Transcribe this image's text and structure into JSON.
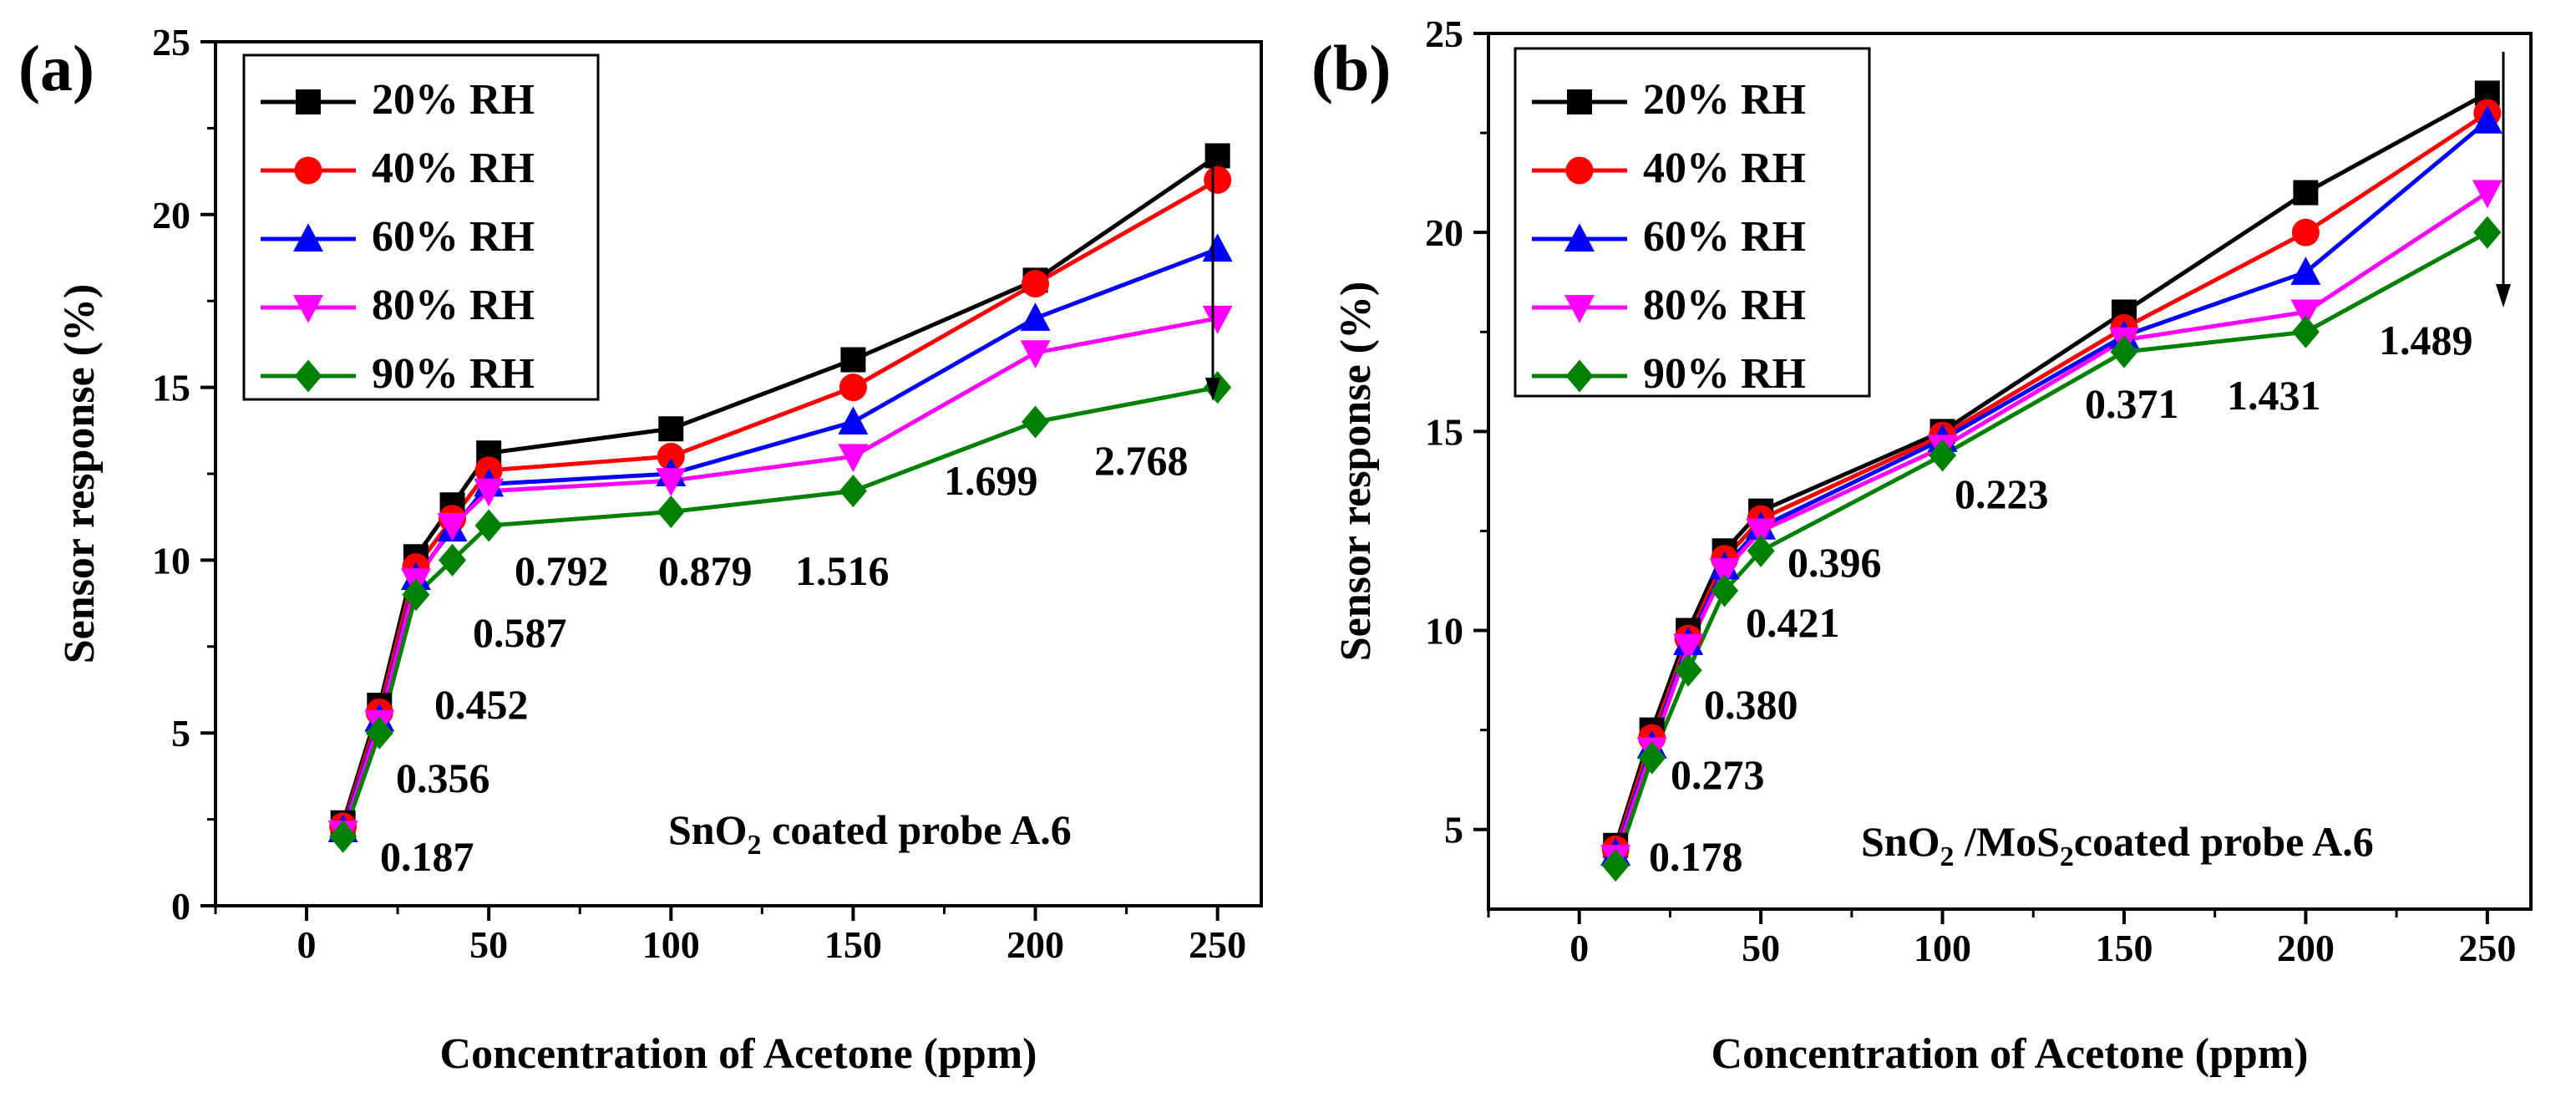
{
  "colors": {
    "rh20": "#000000",
    "rh40": "#ff0000",
    "rh60": "#0000ff",
    "rh80": "#ff00ff",
    "rh90": "#008000"
  },
  "chart_data": [
    {
      "type": "line",
      "panel_label": "(a)",
      "title": "",
      "xlabel": "Concentration of Acetone (ppm)",
      "ylabel": "Sensor response (%)",
      "xlim": [
        -25,
        262
      ],
      "ylim": [
        0,
        25
      ],
      "xticks": [
        0,
        50,
        100,
        150,
        200,
        250
      ],
      "yticks": [
        0,
        5,
        10,
        15,
        20,
        25
      ],
      "x": [
        10,
        20,
        30,
        40,
        50,
        100,
        150,
        200,
        250
      ],
      "series": [
        {
          "name": "20% RH",
          "marker": "square",
          "color": "#000000",
          "values": [
            2.4,
            5.8,
            10.1,
            11.6,
            13.1,
            13.8,
            15.8,
            18.1,
            21.7
          ]
        },
        {
          "name": "40% RH",
          "marker": "circle",
          "color": "#ff0000",
          "values": [
            2.3,
            5.6,
            9.8,
            11.2,
            12.6,
            13.0,
            15.0,
            18.0,
            21.0
          ]
        },
        {
          "name": "60% RH",
          "marker": "triangle-up",
          "color": "#0000ff",
          "values": [
            2.2,
            5.4,
            9.5,
            10.9,
            12.2,
            12.5,
            14.0,
            17.0,
            19.0
          ]
        },
        {
          "name": "80% RH",
          "marker": "triangle-down",
          "color": "#ff00ff",
          "values": [
            2.1,
            5.3,
            9.4,
            11.0,
            12.0,
            12.3,
            13.0,
            16.0,
            17.0
          ]
        },
        {
          "name": "90% RH",
          "marker": "diamond",
          "color": "#008000",
          "values": [
            2.0,
            5.0,
            9.0,
            10.0,
            11.0,
            11.4,
            12.0,
            14.0,
            15.0
          ]
        }
      ],
      "annotations": [
        {
          "text": "0.187",
          "x": 10
        },
        {
          "text": "0.356",
          "x": 20
        },
        {
          "text": "0.452",
          "x": 30
        },
        {
          "text": "0.587",
          "x": 40
        },
        {
          "text": "0.792",
          "x": 50
        },
        {
          "text": "0.879",
          "x": 100
        },
        {
          "text": "1.516",
          "x": 150
        },
        {
          "text": "1.699",
          "x": 200
        },
        {
          "text": "2.768",
          "x": 250
        }
      ],
      "caption": {
        "pre": "SnO",
        "sub": "2",
        "post": " coated probe A.6"
      },
      "legend_position": "top-left"
    },
    {
      "type": "line",
      "panel_label": "(b)",
      "title": "",
      "xlabel": "Concentration of Acetone (ppm)",
      "ylabel": "Sensor response (%)",
      "xlim": [
        -25,
        262
      ],
      "ylim": [
        3,
        25
      ],
      "xticks": [
        0,
        50,
        100,
        150,
        200,
        250
      ],
      "yticks": [
        5,
        10,
        15,
        20,
        25
      ],
      "x": [
        10,
        20,
        30,
        40,
        50,
        100,
        150,
        200,
        250
      ],
      "series": [
        {
          "name": "20% RH",
          "marker": "square",
          "color": "#000000",
          "values": [
            4.6,
            7.5,
            10.0,
            12.0,
            13.0,
            15.0,
            18.0,
            21.0,
            23.5
          ]
        },
        {
          "name": "40% RH",
          "marker": "circle",
          "color": "#ff0000",
          "values": [
            4.5,
            7.3,
            9.8,
            11.8,
            12.8,
            14.9,
            17.6,
            20.0,
            23.0
          ]
        },
        {
          "name": "60% RH",
          "marker": "triangle-up",
          "color": "#0000ff",
          "values": [
            4.4,
            7.1,
            9.7,
            11.6,
            12.6,
            14.8,
            17.4,
            19.0,
            22.8
          ]
        },
        {
          "name": "80% RH",
          "marker": "triangle-down",
          "color": "#ff00ff",
          "values": [
            4.3,
            7.0,
            9.6,
            11.5,
            12.5,
            14.6,
            17.3,
            18.0,
            21.0
          ]
        },
        {
          "name": "90% RH",
          "marker": "diamond",
          "color": "#008000",
          "values": [
            4.1,
            6.8,
            9.0,
            11.0,
            12.0,
            14.4,
            17.0,
            17.5,
            20.0
          ]
        }
      ],
      "annotations": [
        {
          "text": "0.178",
          "x": 10
        },
        {
          "text": "0.273",
          "x": 20
        },
        {
          "text": "0.380",
          "x": 30
        },
        {
          "text": "0.421",
          "x": 40
        },
        {
          "text": "0.396",
          "x": 50
        },
        {
          "text": "0.223",
          "x": 100
        },
        {
          "text": "0.371",
          "x": 150
        },
        {
          "text": "1.431",
          "x": 200
        },
        {
          "text": "1.489",
          "x": 250
        }
      ],
      "caption": {
        "pre": "SnO",
        "sub": "2",
        "post": " /MoS",
        "sub2": "2",
        "post2": "coated probe A.6"
      },
      "legend_position": "top-left"
    }
  ]
}
